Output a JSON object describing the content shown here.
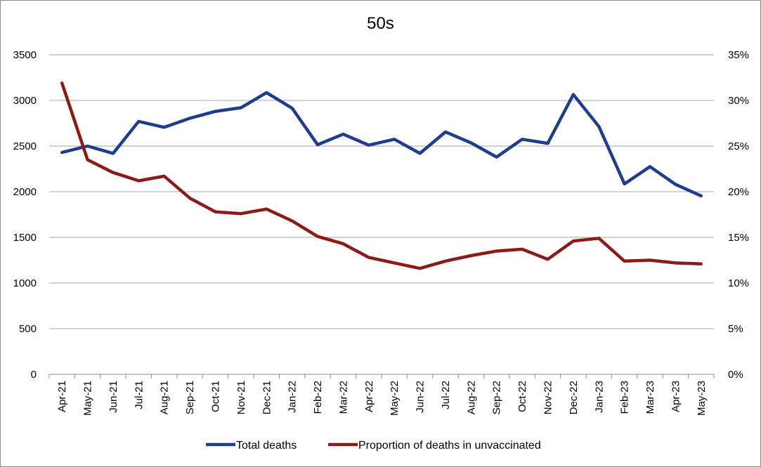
{
  "chart_data": {
    "type": "line",
    "title": "50s",
    "xlabel": "",
    "ylabel": "",
    "y2label": "",
    "categories": [
      "Apr-21",
      "May-21",
      "Jun-21",
      "Jul-21",
      "Aug-21",
      "Sep-21",
      "Oct-21",
      "Nov-21",
      "Dec-21",
      "Jan-22",
      "Feb-22",
      "Mar-22",
      "Apr-22",
      "May-22",
      "Jun-22",
      "Jul-22",
      "Aug-22",
      "Sep-22",
      "Oct-22",
      "Nov-22",
      "Dec-22",
      "Jan-23",
      "Feb-23",
      "Mar-23",
      "Apr-23",
      "May-23"
    ],
    "ylim": [
      0,
      3500
    ],
    "y_ticks": [
      "0",
      "500",
      "1000",
      "1500",
      "2000",
      "2500",
      "3000",
      "3500"
    ],
    "y2lim": [
      0,
      0.35
    ],
    "y2_ticks": [
      "0%",
      "5%",
      "10%",
      "15%",
      "20%",
      "25%",
      "30%",
      "35%"
    ],
    "grid": true,
    "legend_position": "bottom",
    "series": [
      {
        "name": "Total deaths",
        "axis": "left",
        "color": "#1f3d8c",
        "values": [
          2430,
          2500,
          2420,
          2770,
          2705,
          2805,
          2880,
          2920,
          3085,
          2915,
          2515,
          2630,
          2510,
          2575,
          2420,
          2655,
          2535,
          2380,
          2575,
          2530,
          3065,
          2715,
          2085,
          2275,
          2080,
          1955
        ]
      },
      {
        "name": "Proportion of deaths in unvaccinated",
        "axis": "right",
        "color": "#8b1a1a",
        "values": [
          0.319,
          0.235,
          0.221,
          0.212,
          0.217,
          0.193,
          0.178,
          0.176,
          0.181,
          0.168,
          0.151,
          0.143,
          0.128,
          0.122,
          0.116,
          0.124,
          0.13,
          0.135,
          0.137,
          0.126,
          0.146,
          0.149,
          0.124,
          0.125,
          0.122,
          0.121
        ]
      }
    ]
  }
}
